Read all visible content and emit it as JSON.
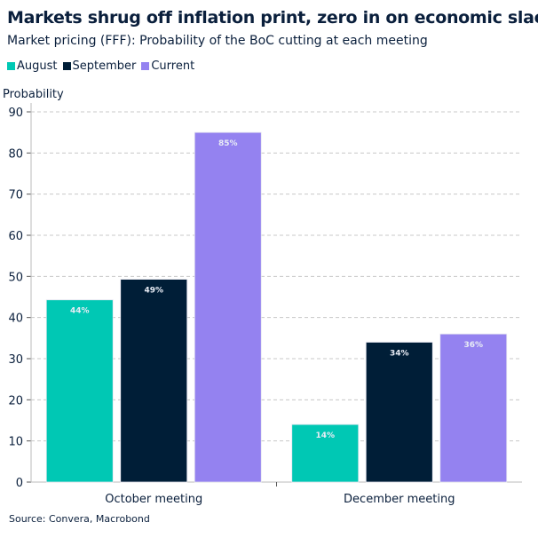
{
  "chart_data": {
    "type": "bar",
    "title": "Markets shrug off inflation print, zero in on economic slack",
    "subtitle": "Market pricing (FFF): Probability of the BoC cutting at each meeting",
    "ylabel": "Probability",
    "xlabel": "",
    "ylim": [
      0,
      90
    ],
    "yticks": [
      0,
      10,
      20,
      30,
      40,
      50,
      60,
      70,
      80,
      90
    ],
    "grid": true,
    "legend_position": "top-left",
    "categories": [
      "October meeting",
      "December meeting"
    ],
    "series": [
      {
        "name": "August",
        "color": "#00c8b4",
        "values": [
          44.3,
          14
        ],
        "labels": [
          "44%",
          "14%"
        ]
      },
      {
        "name": "September",
        "color": "#001e37",
        "values": [
          49.3,
          34
        ],
        "labels": [
          "49%",
          "34%"
        ]
      },
      {
        "name": "Current",
        "color": "#9482f0",
        "values": [
          85,
          36
        ],
        "labels": [
          "85%",
          "36%"
        ]
      }
    ],
    "source": "Source: Convera, Macrobond"
  }
}
